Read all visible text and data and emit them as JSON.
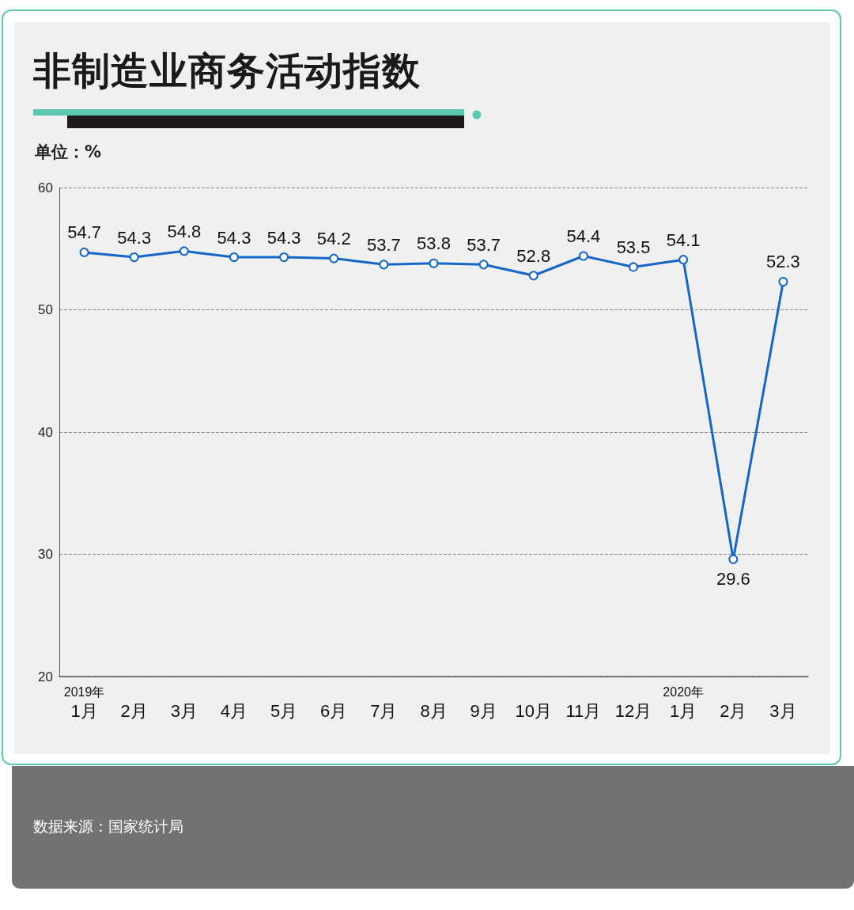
{
  "chart_data": {
    "type": "line",
    "title": "非制造业商务活动指数",
    "ylabel": "单位：%",
    "categories": [
      "2019年\n1月",
      "2月",
      "3月",
      "4月",
      "5月",
      "6月",
      "7月",
      "8月",
      "9月",
      "10月",
      "11月",
      "12月",
      "2020年\n1月",
      "2月",
      "3月"
    ],
    "values": [
      54.7,
      54.3,
      54.8,
      54.3,
      54.3,
      54.2,
      53.7,
      53.8,
      53.7,
      52.8,
      54.4,
      53.5,
      54.1,
      29.6,
      52.3
    ],
    "color": "#1467c8",
    "ylim": [
      20,
      60
    ],
    "yticks": [
      20,
      30,
      40,
      50,
      60
    ],
    "grid": "y",
    "data_labels": true,
    "marker": "circle",
    "line_style": "solid",
    "annotations": [
      "数据来源：国家统计局"
    ]
  }
}
